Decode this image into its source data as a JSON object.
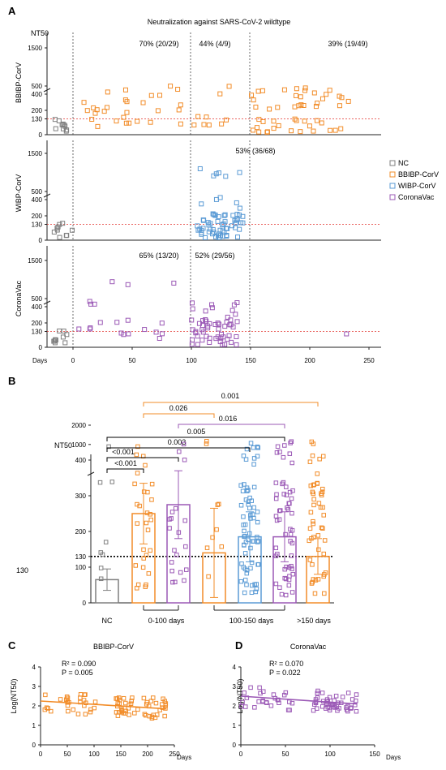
{
  "panel_letters": {
    "a": "A",
    "b": "B",
    "c": "C",
    "d": "D"
  },
  "chart_data": [
    {
      "id": "A",
      "type": "scatter",
      "title": "Neutralization against SARS-CoV-2 wildtype",
      "xlabel": "Days",
      "ylabel": "NT50",
      "xticks": [
        0,
        50,
        100,
        150,
        200,
        250
      ],
      "yticks": [
        "0",
        "130",
        "200",
        "400",
        "500",
        "1500"
      ],
      "threshold": 130,
      "legend": [
        "NC",
        "BBIBP-CorV",
        "WIBP-CorV",
        "CoronaVac"
      ],
      "colors": {
        "NC": "#7f7f7f",
        "BBIBP-CorV": "#f28c28",
        "WIBP-CorV": "#5b9bd5",
        "CoronaVac": "#9b59b6"
      },
      "subpanels": [
        {
          "ylabel": "BBIBP-CorV",
          "annotations": [
            "70% (20/29)",
            "44% (4/9)",
            "39% (19/49)"
          ]
        },
        {
          "ylabel": "WIBP-CorV",
          "annotations": [
            "53% (36/68)"
          ]
        },
        {
          "ylabel": "CoronaVac",
          "annotations": [
            "65% (13/20)",
            "52% (29/56)"
          ]
        }
      ]
    },
    {
      "id": "B",
      "type": "bar",
      "ylabel": "NT50",
      "threshold": 130,
      "threshold_label": "130",
      "yticks": [
        "0",
        "100",
        "130",
        "200",
        "300",
        "400",
        "1000",
        "2000"
      ],
      "categories": [
        "NC",
        "0-100 days",
        "100-150 days",
        ">150 days"
      ],
      "bars": [
        {
          "group": "NC",
          "series": "NC",
          "mean": 65,
          "sd": 30
        },
        {
          "group": "0-100 days",
          "series": "BBIBP-CorV",
          "mean": 250,
          "sd": 85
        },
        {
          "group": "0-100 days",
          "series": "CoronaVac",
          "mean": 275,
          "sd": 95
        },
        {
          "group": "100-150 days",
          "series": "BBIBP-CorV",
          "mean": 140,
          "sd": 125
        },
        {
          "group": "100-150 days",
          "series": "WIBP-CorV",
          "mean": 185,
          "sd": 70
        },
        {
          "group": "100-150 days",
          "series": "CoronaVac",
          "mean": 185,
          "sd": 70
        },
        {
          "group": ">150 days",
          "series": "BBIBP-CorV",
          "mean": 130,
          "sd": 50
        }
      ],
      "comparisons": [
        "0.001",
        "0.026",
        "0.016",
        "0.005",
        "0.003",
        "<0.001",
        "<0.001"
      ]
    },
    {
      "id": "C",
      "type": "scatter",
      "title": "BBIBP-CorV",
      "xlabel": "Days",
      "ylabel": "Log(NT50)",
      "xticks": [
        0,
        50,
        100,
        150,
        200,
        250
      ],
      "yticks": [
        0,
        1,
        2,
        3,
        4
      ],
      "xlim": [
        0,
        250
      ],
      "ylim": [
        0,
        4
      ],
      "stats": [
        "R² = 0.090",
        "P = 0.005"
      ],
      "fit": {
        "x": [
          0,
          235
        ],
        "y": [
          2.25,
          1.85
        ]
      }
    },
    {
      "id": "D",
      "type": "scatter",
      "title": "CoronaVac",
      "xlabel": "Days",
      "ylabel": "Log(NT50)",
      "xticks": [
        0,
        50,
        100,
        150
      ],
      "yticks": [
        0,
        1,
        2,
        3,
        4
      ],
      "xlim": [
        0,
        150
      ],
      "ylim": [
        0,
        4
      ],
      "stats": [
        "R² = 0.070",
        "P = 0.022"
      ],
      "fit": {
        "x": [
          0,
          130
        ],
        "y": [
          2.5,
          2.1
        ]
      }
    }
  ]
}
